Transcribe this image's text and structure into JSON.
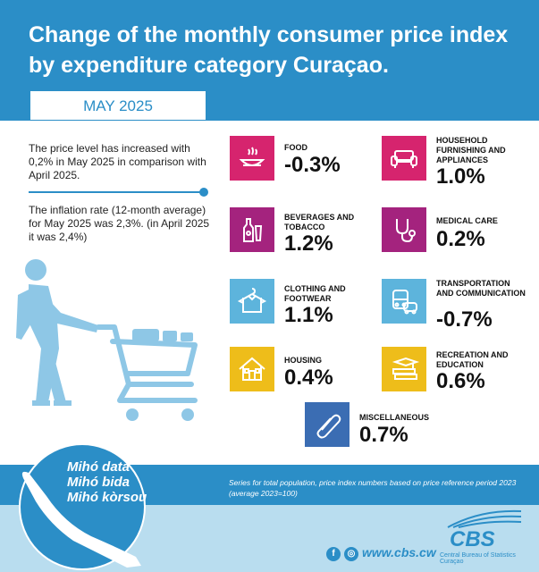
{
  "header": {
    "title": "Change of the monthly consumer price index by expenditure category Curaçao.",
    "period": "MAY 2025"
  },
  "intro": {
    "paragraph1": "The price level has increased with 0,2% in May 2025 in comparison with April 2025.",
    "paragraph2": "The inflation rate (12-month average) for May 2025 was 2,3%. (in April 2025 it was 2,4%)"
  },
  "categories": [
    {
      "name": "FOOD",
      "value": "-0.3%",
      "color": "#d6246e",
      "icon": "food-bowl-icon"
    },
    {
      "name": "HOUSEHOLD FURNISHING AND APPLIANCES",
      "value": "1.0%",
      "color": "#d6246e",
      "icon": "sofa-icon"
    },
    {
      "name": "BEVERAGES AND TOBACCO",
      "value": "1.2%",
      "color": "#a4237e",
      "icon": "bottle-icon"
    },
    {
      "name": "MEDICAL CARE",
      "value": "0.2%",
      "color": "#a4237e",
      "icon": "stethoscope-icon"
    },
    {
      "name": "CLOTHING AND FOOTWEAR",
      "value": "1.1%",
      "color": "#5db4dc",
      "icon": "shirt-icon"
    },
    {
      "name": "TRANSPORTATION AND COMMUNICATION",
      "value": "-0.7%",
      "color": "#5db4dc",
      "icon": "bus-car-icon"
    },
    {
      "name": "HOUSING",
      "value": "0.4%",
      "color": "#eebd1a",
      "icon": "house-icon"
    },
    {
      "name": "RECREATION AND EDUCATION",
      "value": "0.6%",
      "color": "#eebd1a",
      "icon": "books-icon"
    },
    {
      "name": "MISCELLANEOUS",
      "value": "0.7%",
      "color": "#3b6db3",
      "icon": "paperclip-icon"
    }
  ],
  "footer": {
    "note": "Series for total population, price index numbers based on price reference period 2023 (average 2023=100)",
    "slogan": [
      "Mihó data",
      "Mihó bida",
      "Mihó kòrsou"
    ],
    "website": "www.cbs.cw",
    "logo_text": "CBS",
    "logo_subtitle": "Central Bureau of Statistics Curaçao",
    "social_icons": [
      "facebook-icon",
      "instagram-icon"
    ]
  }
}
